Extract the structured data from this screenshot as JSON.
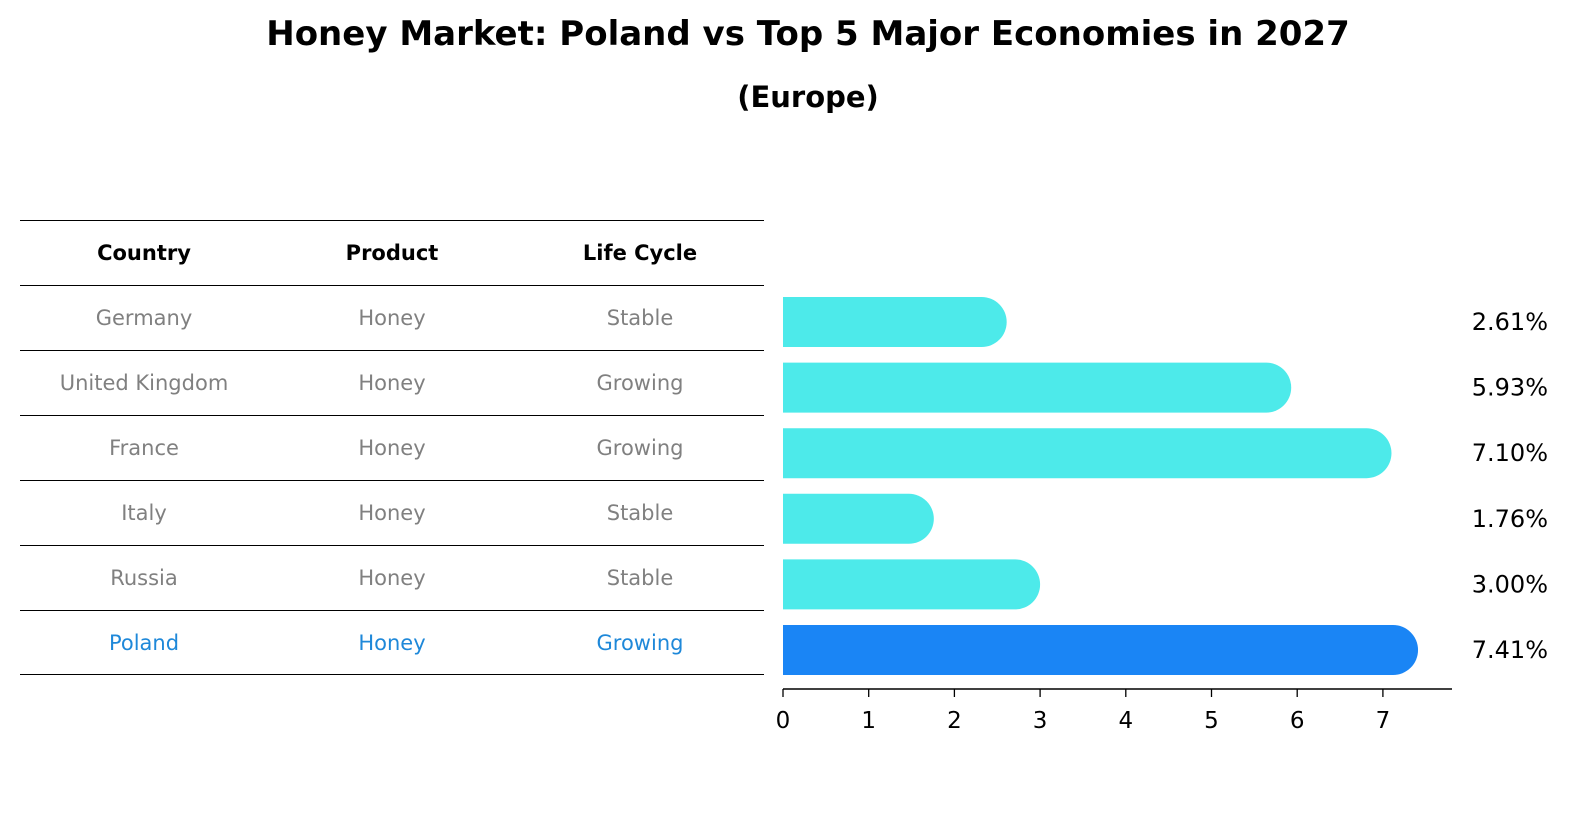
{
  "title": "Honey Market: Poland vs Top 5 Major Economies in 2027",
  "subtitle": "(Europe)",
  "table": {
    "headers": [
      "Country",
      "Product",
      "Life Cycle"
    ],
    "rows": [
      {
        "country": "Germany",
        "product": "Honey",
        "life_cycle": "Stable"
      },
      {
        "country": "United Kingdom",
        "product": "Honey",
        "life_cycle": "Growing"
      },
      {
        "country": "France",
        "product": "Honey",
        "life_cycle": "Growing"
      },
      {
        "country": "Italy",
        "product": "Honey",
        "life_cycle": "Stable"
      },
      {
        "country": "Russia",
        "product": "Honey",
        "life_cycle": "Stable"
      },
      {
        "country": "Poland",
        "product": "Honey",
        "life_cycle": "Growing"
      }
    ]
  },
  "chart_data": {
    "type": "bar",
    "orientation": "horizontal",
    "categories": [
      "Germany",
      "United Kingdom",
      "France",
      "Italy",
      "Russia",
      "Poland"
    ],
    "values": [
      2.61,
      5.93,
      7.1,
      1.76,
      3.0,
      7.41
    ],
    "value_labels": [
      "2.61%",
      "5.93%",
      "7.10%",
      "1.76%",
      "3.00%",
      "7.41%"
    ],
    "highlight_index": 5,
    "xlim": [
      0,
      7.8
    ],
    "xticks": [
      0,
      1,
      2,
      3,
      4,
      5,
      6,
      7
    ],
    "grid": false,
    "colors": {
      "default": "#4deaea",
      "highlight": "#1a85f5",
      "highlight_text": "#1e88d9",
      "muted_text": "#808080"
    }
  }
}
